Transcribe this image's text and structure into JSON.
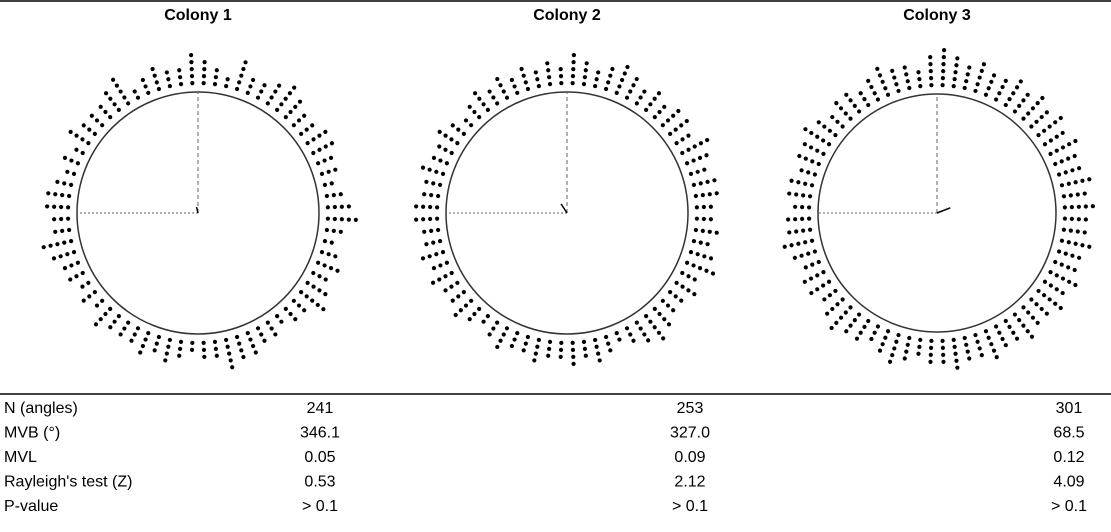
{
  "chart_data": [
    {
      "type": "circular-dot",
      "title": "Colony 1",
      "values": [
        4,
        3,
        2,
        5,
        3,
        3,
        4,
        5,
        4,
        3,
        3,
        4,
        4,
        3,
        3,
        2,
        3,
        4,
        5,
        3,
        2,
        3,
        4,
        3,
        4,
        5,
        3,
        3,
        2,
        3,
        3,
        4,
        4,
        5,
        3,
        3,
        2,
        3,
        4,
        3,
        4,
        3,
        3,
        3,
        4,
        2,
        3,
        2,
        3,
        3,
        4,
        5,
        3,
        3,
        4,
        4,
        3,
        2,
        3,
        2,
        4,
        3,
        3,
        3,
        4,
        5,
        2,
        3,
        4,
        3,
        3,
        5
      ]
    },
    {
      "type": "circular-dot",
      "title": "Colony 2",
      "values": [
        5,
        4,
        3,
        4,
        5,
        4,
        3,
        4,
        3,
        4,
        4,
        3,
        5,
        4,
        3,
        4,
        4,
        3,
        3,
        4,
        3,
        4,
        5,
        3,
        4,
        3,
        3,
        4,
        5,
        4,
        3,
        2,
        3,
        4,
        3,
        4,
        3,
        3,
        4,
        3,
        3,
        4,
        3,
        2,
        3,
        4,
        3,
        3,
        4,
        3,
        4,
        3,
        3,
        4,
        4,
        3,
        3,
        4,
        3,
        3,
        4,
        3,
        2,
        3,
        4,
        3,
        4,
        3,
        4,
        3,
        4,
        3
      ]
    },
    {
      "type": "circular-dot",
      "title": "Colony 3",
      "values": [
        6,
        5,
        4,
        5,
        4,
        4,
        5,
        4,
        5,
        4,
        5,
        4,
        5,
        4,
        4,
        5,
        4,
        5,
        4,
        4,
        5,
        4,
        4,
        5,
        4,
        5,
        4,
        4,
        5,
        4,
        4,
        5,
        4,
        4,
        5,
        4,
        4,
        3,
        4,
        5,
        4,
        3,
        4,
        4,
        5,
        4,
        3,
        4,
        4,
        3,
        4,
        5,
        4,
        4,
        3,
        4,
        4,
        3,
        4,
        4,
        5,
        4,
        3,
        4,
        4,
        3,
        4,
        5,
        4,
        4,
        3,
        5
      ]
    }
  ],
  "table": {
    "rows": [
      [
        "N (angles)",
        "241",
        "253",
        "301"
      ],
      [
        "MVB (°)",
        "346.1",
        "327.0",
        "68.5"
      ],
      [
        "MVL",
        "0.05",
        "0.09",
        "0.12"
      ],
      [
        "Rayleigh's test (Z)",
        "0.53",
        "2.12",
        "4.09"
      ],
      [
        "P-value",
        "> 0.1",
        "> 0.1",
        "> 0.1"
      ]
    ]
  }
}
